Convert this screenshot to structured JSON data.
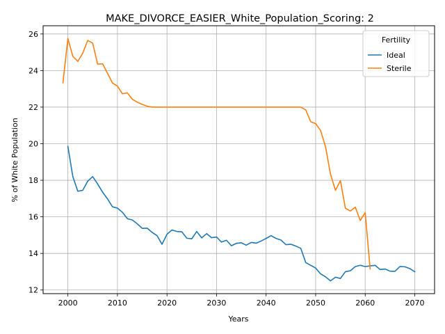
{
  "chart_data": {
    "type": "line",
    "title": "MAKE_DIVORCE_EASIER_White_Population_Scoring: 2",
    "xlabel": "Years",
    "ylabel": "% of White Population",
    "xlim": [
      1995,
      2074
    ],
    "ylim": [
      11.8,
      26.45
    ],
    "xticks": [
      2000,
      2010,
      2020,
      2030,
      2040,
      2050,
      2060,
      2070
    ],
    "yticks": [
      12,
      14,
      16,
      18,
      20,
      22,
      24,
      26
    ],
    "grid": true,
    "legend": {
      "title": "Fertility",
      "placement": "top-right"
    },
    "series": [
      {
        "name": "Ideal",
        "color": "#1f77b4",
        "x": [
          2000,
          2001,
          2002,
          2003,
          2004,
          2005,
          2006,
          2007,
          2008,
          2009,
          2010,
          2011,
          2012,
          2013,
          2014,
          2015,
          2016,
          2017,
          2018,
          2019,
          2020,
          2021,
          2022,
          2023,
          2024,
          2025,
          2026,
          2027,
          2028,
          2029,
          2030,
          2031,
          2032,
          2033,
          2034,
          2035,
          2036,
          2037,
          2038,
          2039,
          2040,
          2041,
          2042,
          2043,
          2044,
          2045,
          2046,
          2047,
          2048,
          2049,
          2050,
          2051,
          2052,
          2053,
          2054,
          2055,
          2056,
          2057,
          2058,
          2059,
          2060,
          2061,
          2062,
          2063,
          2064,
          2065,
          2066,
          2067,
          2068,
          2069,
          2070
        ],
        "values": [
          19.85,
          18.2,
          17.4,
          17.45,
          17.95,
          18.2,
          17.8,
          17.35,
          16.98,
          16.55,
          16.48,
          16.25,
          15.9,
          15.83,
          15.62,
          15.37,
          15.38,
          15.15,
          14.97,
          14.5,
          15.05,
          15.28,
          15.2,
          15.18,
          14.83,
          14.8,
          15.2,
          14.85,
          15.08,
          14.86,
          14.9,
          14.62,
          14.72,
          14.42,
          14.55,
          14.58,
          14.45,
          14.6,
          14.56,
          14.68,
          14.82,
          14.97,
          14.82,
          14.73,
          14.48,
          14.5,
          14.4,
          14.28,
          13.5,
          13.35,
          13.2,
          12.88,
          12.72,
          12.5,
          12.7,
          12.63,
          13.0,
          13.05,
          13.28,
          13.35,
          13.28,
          13.32,
          13.35,
          13.12,
          13.15,
          13.03,
          13.02,
          13.28,
          13.27,
          13.17,
          13.0
        ]
      },
      {
        "name": "Sterile",
        "color": "#ff7f0e",
        "x": [
          1999,
          2000,
          2001,
          2002,
          2003,
          2004,
          2005,
          2006,
          2007,
          2008,
          2009,
          2010,
          2011,
          2012,
          2013,
          2014,
          2015,
          2016,
          2017,
          2018,
          2019,
          2020,
          2021,
          2022,
          2023,
          2024,
          2025,
          2026,
          2027,
          2028,
          2029,
          2030,
          2031,
          2032,
          2033,
          2034,
          2035,
          2036,
          2037,
          2038,
          2039,
          2040,
          2041,
          2042,
          2043,
          2044,
          2045,
          2046,
          2047,
          2048,
          2049,
          2050,
          2051,
          2052,
          2053,
          2054,
          2055,
          2056,
          2057,
          2058,
          2059,
          2060,
          2061
        ],
        "values": [
          23.33,
          25.75,
          24.78,
          24.5,
          24.95,
          25.65,
          25.5,
          24.35,
          24.37,
          23.85,
          23.32,
          23.15,
          22.73,
          22.78,
          22.43,
          22.27,
          22.15,
          22.05,
          22.0,
          22.0,
          22.0,
          22.0,
          22.0,
          22.0,
          22.0,
          22.0,
          22.0,
          22.0,
          22.0,
          22.0,
          22.0,
          22.0,
          22.0,
          22.0,
          22.0,
          22.0,
          22.0,
          22.0,
          22.0,
          22.0,
          22.0,
          22.0,
          22.0,
          22.0,
          22.0,
          22.0,
          22.0,
          22.0,
          22.0,
          21.85,
          21.2,
          21.1,
          20.72,
          19.83,
          18.33,
          17.45,
          17.98,
          16.47,
          16.32,
          16.53,
          15.8,
          16.23,
          13.15
        ]
      }
    ]
  }
}
